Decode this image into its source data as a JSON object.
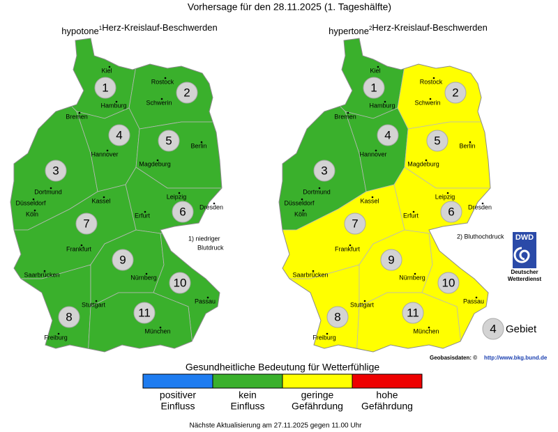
{
  "header": {
    "title": "Vorhersage für den 28.11.2025 (1. Tageshälfte)"
  },
  "regions": [
    "1",
    "2",
    "3",
    "4",
    "5",
    "6",
    "7",
    "8",
    "9",
    "10",
    "11"
  ],
  "cities": [
    "Kiel",
    "Rostock",
    "Hamburg",
    "Schwerin",
    "Bremen",
    "Hannover",
    "Berlin",
    "Magdeburg",
    "Dortmund",
    "Düsseldorf",
    "Köln",
    "Kassel",
    "Leipzig",
    "Dresden",
    "Erfurt",
    "Frankfurt",
    "Saarbrücken",
    "Nürnberg",
    "Stuttgart",
    "Passau",
    "München",
    "Freiburg"
  ],
  "maps": [
    {
      "title": "hypotone",
      "superscript": "1",
      "subtitle": "Herz-Kreislauf-Beschwerden",
      "note": [
        "1) niedriger",
        "Blutdruck"
      ],
      "region_colors": [
        "#3ab02c",
        "#3ab02c",
        "#3ab02c",
        "#3ab02c",
        "#3ab02c",
        "#3ab02c",
        "#3ab02c",
        "#3ab02c",
        "#3ab02c",
        "#3ab02c",
        "#3ab02c"
      ]
    },
    {
      "title": "hypertone",
      "superscript": "2",
      "subtitle": "Herz-Kreislauf-Beschwerden",
      "note": [
        "2) Bluthochdruck"
      ],
      "region_colors": [
        "#3ab02c",
        "#ffff00",
        "#3ab02c",
        "#3ab02c",
        "#ffff00",
        "#ffff00",
        "#ffff00",
        "#ffff00",
        "#ffff00",
        "#ffff00",
        "#ffff00"
      ]
    }
  ],
  "legend": {
    "title": "Gesundheitliche Bedeutung für Wetterfühlige",
    "items": [
      {
        "color": "#1e7cf0",
        "label": [
          "positiver",
          "Einfluss"
        ]
      },
      {
        "color": "#3ab02c",
        "label": [
          "kein",
          "Einfluss"
        ]
      },
      {
        "color": "#ffff00",
        "label": [
          "geringe",
          "Gefährdung"
        ]
      },
      {
        "color": "#ee0000",
        "label": [
          "hohe",
          "Gefährdung"
        ]
      }
    ]
  },
  "key": {
    "symbol": "4",
    "label": "Gebiet"
  },
  "logo": {
    "abbr": "DWD",
    "name": [
      "Deutscher",
      "Wetterdienst"
    ]
  },
  "credits": {
    "label": "Geobasisdaten: ©",
    "url": "http://www.bkg.bund.de"
  },
  "footer": "Nächste Aktualisierung am 27.11.2025 gegen 11.00 Uhr"
}
